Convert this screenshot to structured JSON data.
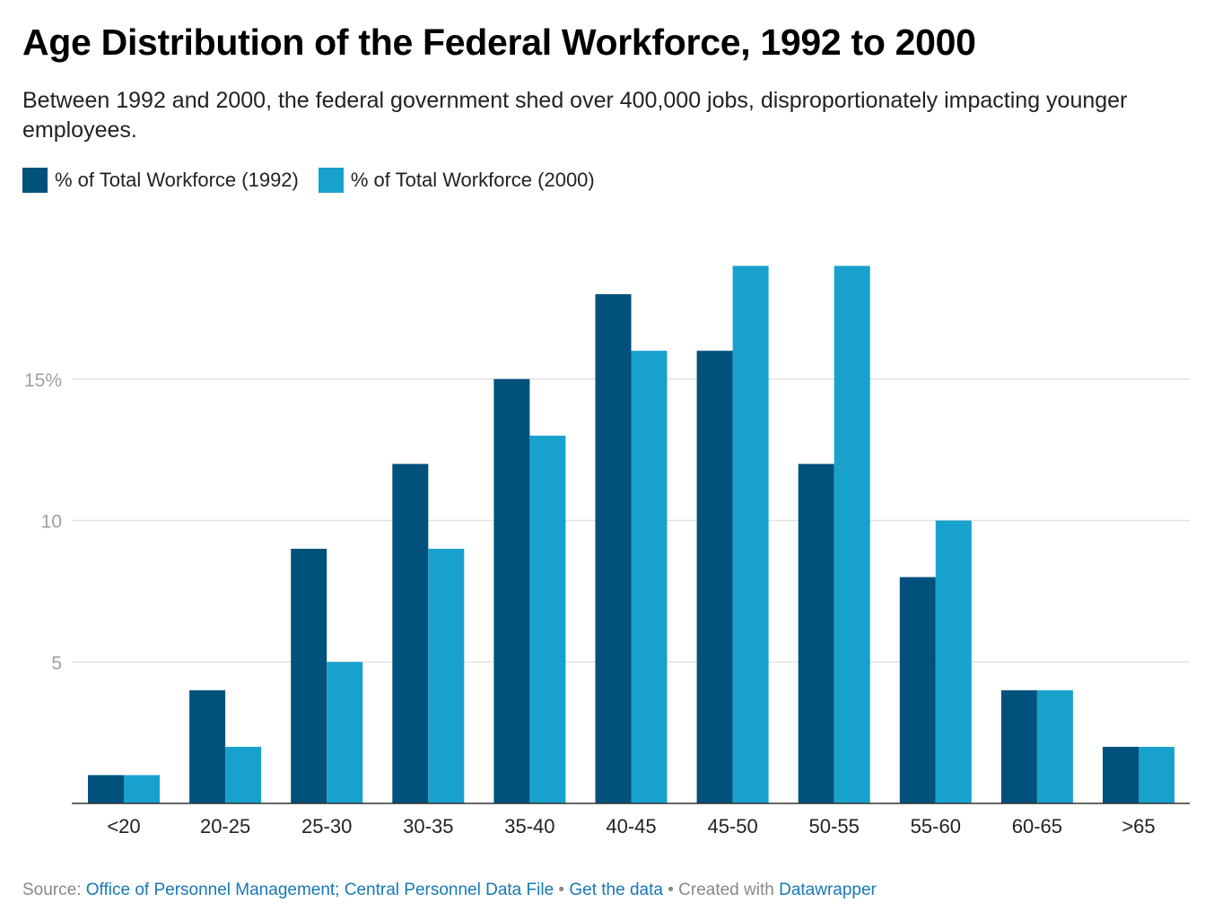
{
  "header": {
    "title": "Age Distribution of the Federal Workforce, 1992 to 2000",
    "subtitle": "Between 1992 and 2000, the federal government shed over 400,000 jobs, disproportionately impacting younger employees."
  },
  "footer": {
    "source_prefix": "Source:",
    "source_link": "Office of Personnel Management; Central Personnel Data File",
    "separator": "•",
    "get_data": "Get the data",
    "created_with": "Created with",
    "tool": "Datawrapper"
  },
  "chart_data": {
    "type": "bar",
    "title": "Age Distribution of the Federal Workforce, 1992 to 2000",
    "subtitle": "Between 1992 and 2000, the federal government shed over 400,000 jobs, disproportionately impacting younger employees.",
    "xlabel": "",
    "ylabel": "",
    "categories": [
      "<20",
      "20-25",
      "25-30",
      "30-35",
      "35-40",
      "40-45",
      "45-50",
      "50-55",
      "55-60",
      "60-65",
      ">65"
    ],
    "series": [
      {
        "name": "% of Total Workforce (1992)",
        "color": "#00517b",
        "values": [
          1,
          4,
          9,
          12,
          15,
          18,
          16,
          12,
          8,
          4,
          2
        ]
      },
      {
        "name": "% of Total Workforce (2000)",
        "color": "#18a1cd",
        "values": [
          1,
          2,
          5,
          9,
          13,
          16,
          19,
          19,
          10,
          4,
          2
        ]
      }
    ],
    "ylim": [
      0,
      19
    ],
    "yticks": [
      {
        "value": 5,
        "label": "5"
      },
      {
        "value": 10,
        "label": "10"
      },
      {
        "value": 15,
        "label": "15%"
      }
    ],
    "grid": true,
    "legend": "top-left"
  }
}
